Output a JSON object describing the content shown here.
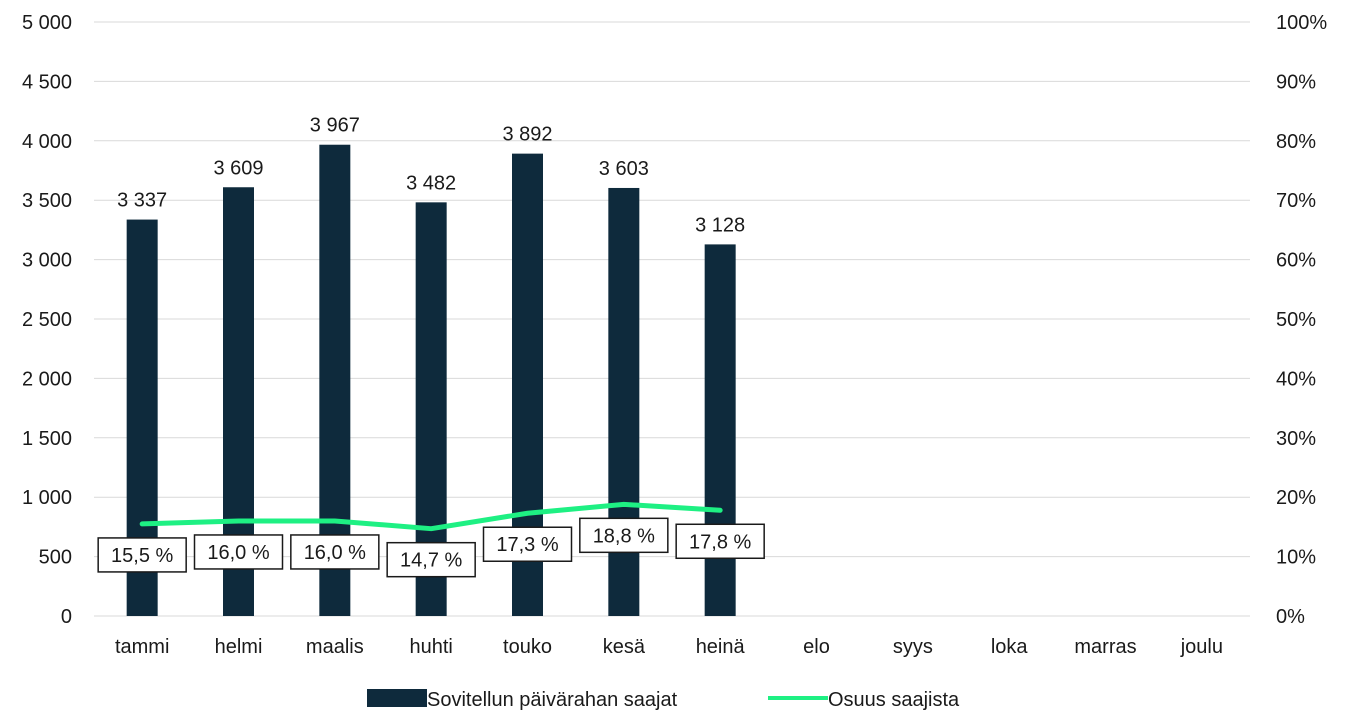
{
  "chart_data": {
    "type": "bar",
    "categories": [
      "tammi",
      "helmi",
      "maalis",
      "huhti",
      "touko",
      "kesä",
      "heinä",
      "elo",
      "syys",
      "loka",
      "marras",
      "joulu"
    ],
    "series": [
      {
        "name": "Sovitellun päivärahan saajat",
        "type": "bar",
        "axis": "left",
        "values": [
          3337,
          3609,
          3967,
          3482,
          3892,
          3603,
          3128,
          null,
          null,
          null,
          null,
          null
        ],
        "labels": [
          "3 337",
          "3 609",
          "3 967",
          "3 482",
          "3 892",
          "3 603",
          "3 128",
          "",
          "",
          "",
          "",
          ""
        ],
        "color": "#0e2a3c"
      },
      {
        "name": "Osuus saajista",
        "type": "line",
        "axis": "right",
        "values": [
          15.5,
          16.0,
          16.0,
          14.7,
          17.3,
          18.8,
          17.8,
          null,
          null,
          null,
          null,
          null
        ],
        "labels": [
          "15,5 %",
          "16,0 %",
          "16,0 %",
          "14,7 %",
          "17,3 %",
          "18,8 %",
          "17,8 %",
          "",
          "",
          "",
          "",
          ""
        ],
        "color": "#1ef083"
      }
    ],
    "y_left": {
      "ylim": [
        0,
        5000
      ],
      "ticks": [
        0,
        500,
        1000,
        1500,
        2000,
        2500,
        3000,
        3500,
        4000,
        4500,
        5000
      ],
      "tick_labels": [
        "0",
        "500",
        "1 000",
        "1 500",
        "2 000",
        "2 500",
        "3 000",
        "3 500",
        "4 000",
        "4 500",
        "5 000"
      ]
    },
    "y_right": {
      "ylim": [
        0,
        100
      ],
      "ticks": [
        0,
        10,
        20,
        30,
        40,
        50,
        60,
        70,
        80,
        90,
        100
      ],
      "tick_labels": [
        "0%",
        "10%",
        "20%",
        "30%",
        "40%",
        "50%",
        "60%",
        "70%",
        "80%",
        "90%",
        "100%"
      ]
    },
    "grid": true,
    "legend_position": "bottom",
    "gridline_color": "#d9d9d9"
  }
}
